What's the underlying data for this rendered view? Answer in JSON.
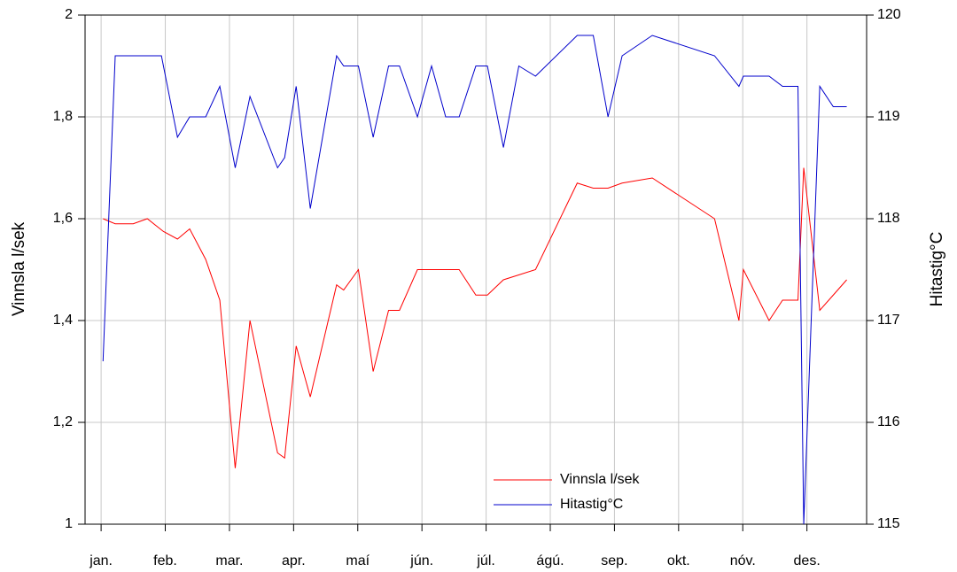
{
  "chart_data": {
    "type": "line",
    "ylabel": "Vinnsla l/sek",
    "y2label": "Hitastig°C",
    "xlim": [
      -0.25,
      11.93
    ],
    "xticks": [
      {
        "value": 0,
        "label": "jan."
      },
      {
        "value": 1,
        "label": "feb."
      },
      {
        "value": 2,
        "label": "mar."
      },
      {
        "value": 3,
        "label": "apr."
      },
      {
        "value": 4,
        "label": "maí"
      },
      {
        "value": 5,
        "label": "jún."
      },
      {
        "value": 6,
        "label": "júl."
      },
      {
        "value": 7,
        "label": "ágú."
      },
      {
        "value": 8,
        "label": "sep."
      },
      {
        "value": 9,
        "label": "okt."
      },
      {
        "value": 10,
        "label": "nóv."
      },
      {
        "value": 11,
        "label": "des."
      }
    ],
    "ylim": [
      1,
      2
    ],
    "yticks": [
      1,
      {
        "value": 1.2,
        "label": "1,2"
      },
      {
        "value": 1.4,
        "label": "1,4"
      },
      {
        "value": 1.6,
        "label": "1,6"
      },
      {
        "value": 1.8,
        "label": "1,8"
      },
      2
    ],
    "y2lim": [
      115,
      120
    ],
    "y2ticks": [
      115,
      116,
      117,
      118,
      119,
      120
    ],
    "grid": true,
    "legend": "bottom",
    "series": [
      {
        "name": "Vinnsla l/sek",
        "color": "#ff0000",
        "x": [
          0.03,
          0.22,
          0.5,
          0.72,
          0.97,
          1.19,
          1.38,
          1.63,
          1.85,
          2.09,
          2.32,
          2.75,
          2.86,
          3.04,
          3.26,
          3.67,
          3.78,
          4.01,
          4.24,
          4.48,
          4.65,
          4.93,
          5.58,
          5.84,
          6.02,
          6.27,
          6.77,
          7.42,
          7.67,
          7.9,
          8.12,
          8.59,
          9.56,
          9.94,
          10.01,
          10.41,
          10.62,
          10.86,
          10.95,
          11.2,
          11.41,
          11.62
        ],
        "values": [
          1.6,
          1.59,
          1.59,
          1.6,
          1.575,
          1.56,
          1.58,
          1.52,
          1.44,
          1.11,
          1.4,
          1.14,
          1.13,
          1.35,
          1.25,
          1.47,
          1.46,
          1.5,
          1.3,
          1.42,
          1.42,
          1.5,
          1.5,
          1.45,
          1.45,
          1.48,
          1.5,
          1.67,
          1.66,
          1.66,
          1.67,
          1.68,
          1.6,
          1.4,
          1.5,
          1.4,
          1.44,
          1.44,
          1.7,
          1.42,
          1.45,
          1.48
        ]
      },
      {
        "name": "Hitastig°C",
        "color": "#0000cc",
        "axis": "y2",
        "x": [
          0.03,
          0.22,
          0.94,
          1.19,
          1.38,
          1.63,
          1.85,
          2.09,
          2.32,
          2.75,
          2.86,
          3.04,
          3.26,
          3.67,
          3.78,
          4.01,
          4.24,
          4.48,
          4.65,
          4.93,
          5.15,
          5.37,
          5.58,
          5.84,
          6.02,
          6.27,
          6.51,
          6.77,
          7.42,
          7.67,
          7.9,
          8.12,
          8.59,
          9.56,
          9.94,
          10.01,
          10.41,
          10.62,
          10.86,
          10.95,
          11.2,
          11.41,
          11.62
        ],
        "values": [
          116.6,
          119.6,
          119.6,
          118.8,
          119.0,
          119.0,
          119.3,
          118.5,
          119.2,
          118.5,
          118.6,
          119.3,
          118.1,
          119.6,
          119.5,
          119.5,
          118.8,
          119.5,
          119.5,
          119.0,
          119.5,
          119.0,
          119.0,
          119.5,
          119.5,
          118.7,
          119.5,
          119.4,
          119.8,
          119.8,
          119.0,
          119.6,
          119.8,
          119.6,
          119.3,
          119.4,
          119.4,
          119.3,
          119.3,
          115.0,
          119.3,
          119.1,
          119.1
        ]
      }
    ]
  }
}
